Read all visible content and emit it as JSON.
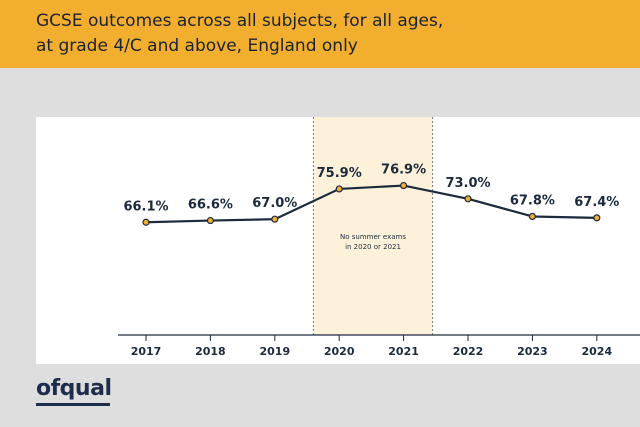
{
  "header": {
    "title_line1": "GCSE outcomes across all subjects, for all ages,",
    "title_line2": "at grade 4/C and above, England only"
  },
  "logo": {
    "text": "ofqual"
  },
  "colors": {
    "header_bg": "#f2ae2e",
    "line": "#1c2a3e",
    "marker_fill": "#f2ae2e",
    "highlight_band": "#fdf2d9",
    "page_bg": "#dedede"
  },
  "chart_data": {
    "type": "line",
    "categories": [
      "2017",
      "2018",
      "2019",
      "2020",
      "2021",
      "2022",
      "2023",
      "2024"
    ],
    "values": [
      66.1,
      66.6,
      67.0,
      75.9,
      76.9,
      73.0,
      67.8,
      67.4
    ],
    "value_labels": [
      "66.1%",
      "66.6%",
      "67.0%",
      "75.9%",
      "76.9%",
      "73.0%",
      "67.8%",
      "67.4%"
    ],
    "title": "",
    "xlabel": "",
    "ylabel": "",
    "ylim": [
      0,
      100
    ],
    "highlight": {
      "categories": [
        "2020",
        "2021"
      ],
      "annotation_line1": "No summer exams",
      "annotation_line2": "in 2020 or 2021"
    },
    "grid": false,
    "legend": "none"
  }
}
